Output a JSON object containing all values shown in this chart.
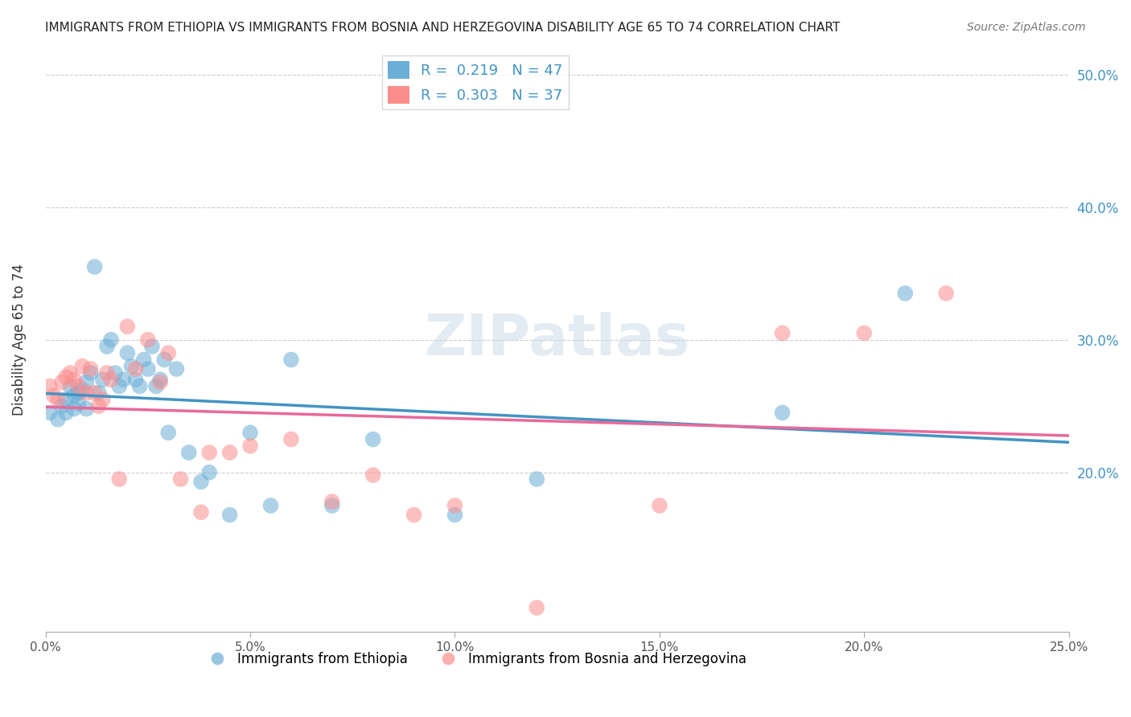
{
  "title": "IMMIGRANTS FROM ETHIOPIA VS IMMIGRANTS FROM BOSNIA AND HERZEGOVINA DISABILITY AGE 65 TO 74 CORRELATION CHART",
  "source": "Source: ZipAtlas.com",
  "xlabel": "",
  "ylabel": "Disability Age 65 to 74",
  "xlim": [
    0.0,
    0.25
  ],
  "ylim": [
    0.08,
    0.52
  ],
  "xtick_labels": [
    "0.0%",
    "5.0%",
    "10.0%",
    "15.0%",
    "20.0%",
    "25.0%"
  ],
  "xtick_vals": [
    0.0,
    0.05,
    0.1,
    0.15,
    0.2,
    0.25
  ],
  "ytick_labels_left": [],
  "ytick_labels_right": [
    "50.0%",
    "40.0%",
    "30.0%",
    "20.0%"
  ],
  "ytick_vals": [
    0.5,
    0.4,
    0.3,
    0.2
  ],
  "watermark": "ZIPatlas",
  "legend_r1": "R =  0.219   N = 47",
  "legend_r2": "R =  0.303   N = 37",
  "legend_label1": "Immigrants from Ethiopia",
  "legend_label2": "Immigrants from Bosnia and Herzegovina",
  "color_blue": "#6baed6",
  "color_pink": "#fc8d8d",
  "line_color_blue": "#4393c3",
  "line_color_pink": "#e8699a",
  "R1": 0.219,
  "N1": 47,
  "R2": 0.303,
  "N2": 37,
  "scatter_blue_x": [
    0.001,
    0.003,
    0.004,
    0.005,
    0.005,
    0.006,
    0.007,
    0.007,
    0.008,
    0.008,
    0.009,
    0.01,
    0.01,
    0.011,
    0.012,
    0.013,
    0.014,
    0.015,
    0.016,
    0.017,
    0.018,
    0.019,
    0.02,
    0.021,
    0.022,
    0.023,
    0.024,
    0.025,
    0.026,
    0.027,
    0.028,
    0.029,
    0.03,
    0.032,
    0.035,
    0.038,
    0.04,
    0.045,
    0.05,
    0.055,
    0.06,
    0.07,
    0.08,
    0.1,
    0.12,
    0.18,
    0.21
  ],
  "scatter_blue_y": [
    0.245,
    0.24,
    0.25,
    0.255,
    0.245,
    0.265,
    0.258,
    0.248,
    0.252,
    0.26,
    0.262,
    0.268,
    0.248,
    0.275,
    0.355,
    0.26,
    0.27,
    0.295,
    0.3,
    0.275,
    0.265,
    0.27,
    0.29,
    0.28,
    0.27,
    0.265,
    0.285,
    0.278,
    0.295,
    0.265,
    0.27,
    0.285,
    0.23,
    0.278,
    0.215,
    0.193,
    0.2,
    0.168,
    0.23,
    0.175,
    0.285,
    0.175,
    0.225,
    0.168,
    0.195,
    0.245,
    0.335
  ],
  "scatter_pink_x": [
    0.001,
    0.002,
    0.003,
    0.004,
    0.005,
    0.006,
    0.007,
    0.008,
    0.009,
    0.01,
    0.011,
    0.012,
    0.013,
    0.014,
    0.015,
    0.016,
    0.018,
    0.02,
    0.022,
    0.025,
    0.028,
    0.03,
    0.033,
    0.038,
    0.04,
    0.045,
    0.05,
    0.06,
    0.07,
    0.08,
    0.09,
    0.1,
    0.12,
    0.15,
    0.18,
    0.2,
    0.22
  ],
  "scatter_pink_y": [
    0.265,
    0.258,
    0.255,
    0.268,
    0.272,
    0.275,
    0.27,
    0.265,
    0.28,
    0.26,
    0.278,
    0.26,
    0.25,
    0.255,
    0.275,
    0.27,
    0.195,
    0.31,
    0.278,
    0.3,
    0.268,
    0.29,
    0.195,
    0.17,
    0.215,
    0.215,
    0.22,
    0.225,
    0.178,
    0.198,
    0.168,
    0.175,
    0.098,
    0.175,
    0.305,
    0.305,
    0.335
  ]
}
